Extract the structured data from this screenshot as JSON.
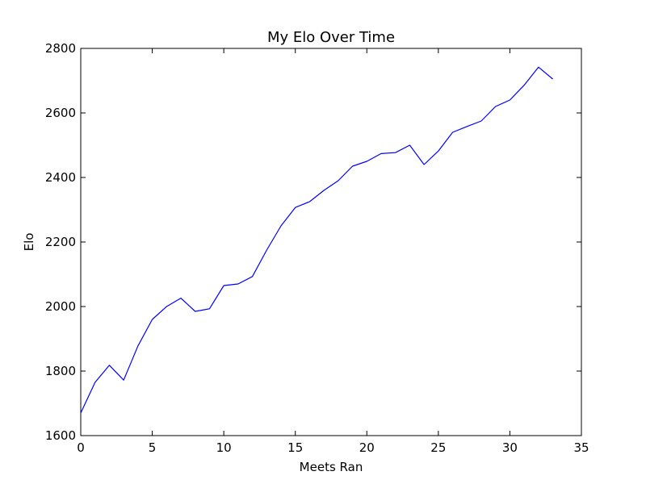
{
  "chart_data": {
    "type": "line",
    "title": "My Elo Over Time",
    "xlabel": "Meets Ran",
    "ylabel": "Elo",
    "xlim": [
      0,
      35
    ],
    "ylim": [
      1600,
      2800
    ],
    "xticks": [
      0,
      5,
      10,
      15,
      20,
      25,
      30,
      35
    ],
    "yticks": [
      1600,
      1800,
      2000,
      2200,
      2400,
      2600,
      2800
    ],
    "grid": false,
    "series": [
      {
        "color": "#0000ff",
        "x": [
          0,
          1,
          2,
          3,
          4,
          5,
          6,
          7,
          8,
          9,
          10,
          11,
          12,
          13,
          14,
          15,
          16,
          17,
          18,
          19,
          20,
          21,
          22,
          23,
          24,
          25,
          26,
          27,
          28,
          29,
          30,
          31,
          32,
          33
        ],
        "y": [
          1670,
          1765,
          1818,
          1772,
          1878,
          1960,
          2000,
          2026,
          1985,
          1993,
          2065,
          2070,
          2093,
          2175,
          2250,
          2307,
          2325,
          2360,
          2390,
          2435,
          2450,
          2474,
          2477,
          2500,
          2440,
          2482,
          2540,
          2558,
          2575,
          2620,
          2640,
          2686,
          2742,
          2705
        ]
      }
    ]
  }
}
